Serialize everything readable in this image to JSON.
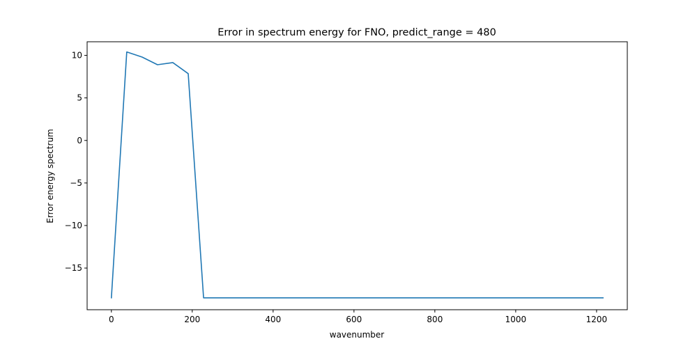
{
  "chart_data": {
    "type": "line",
    "title": "Error in spectrum energy for FNO, predict_range = 480",
    "xlabel": "wavenumber",
    "ylabel": "Error energy spectrum",
    "xlim": [
      -60,
      1276
    ],
    "ylim": [
      -19.9,
      11.6
    ],
    "xticks": [
      0,
      200,
      400,
      600,
      800,
      1000,
      1200
    ],
    "xtick_labels": [
      "0",
      "200",
      "400",
      "600",
      "800",
      "1000",
      "1200"
    ],
    "yticks": [
      10,
      5,
      0,
      -5,
      -10,
      -15
    ],
    "ytick_labels": [
      "10",
      "5",
      "0",
      "−5",
      "−10",
      "−15"
    ],
    "grid": false,
    "series": [
      {
        "color": "#1f77b4",
        "x": [
          0,
          38,
          76,
          114,
          152,
          190,
          228,
          266,
          304,
          342,
          380,
          418,
          456,
          494,
          532,
          570,
          608,
          646,
          684,
          722,
          760,
          798,
          836,
          874,
          912,
          950,
          988,
          1026,
          1064,
          1102,
          1140,
          1178,
          1216
        ],
        "y": [
          -18.5,
          10.4,
          9.8,
          8.9,
          9.15,
          7.85,
          -18.5,
          -18.5,
          -18.5,
          -18.5,
          -18.5,
          -18.5,
          -18.5,
          -18.5,
          -18.5,
          -18.5,
          -18.5,
          -18.5,
          -18.5,
          -18.5,
          -18.5,
          -18.5,
          -18.5,
          -18.5,
          -18.5,
          -18.5,
          -18.5,
          -18.5,
          -18.5,
          -18.5,
          -18.5,
          -18.5,
          -18.5
        ]
      }
    ]
  }
}
